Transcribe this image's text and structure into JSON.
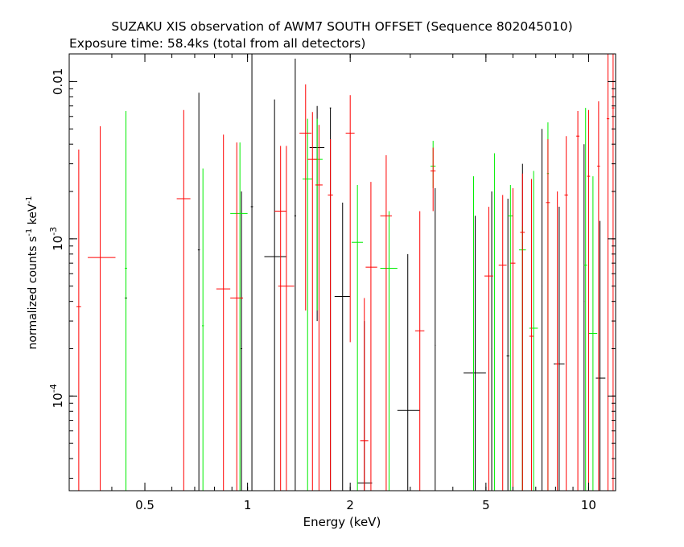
{
  "title": "SUZAKU XIS observation of AWM7 SOUTH OFFSET (Sequence 802045010)",
  "subtitle": "Exposure time: 58.4ks (total from all detectors)",
  "chart_data": {
    "type": "scatter",
    "xlabel": "Energy (keV)",
    "ylabel_main": "normalized counts s",
    "ylabel_sup1": "-1",
    "ylabel_mid": " keV",
    "ylabel_sup2": "-1",
    "xscale": "log",
    "yscale": "log",
    "xlim": [
      0.3,
      12
    ],
    "ylim": [
      2.5e-05,
      0.015
    ],
    "x_ticks": [
      {
        "v": 0.5,
        "label": "0.5"
      },
      {
        "v": 1,
        "label": "1"
      },
      {
        "v": 2,
        "label": "2"
      },
      {
        "v": 5,
        "label": "5"
      },
      {
        "v": 10,
        "label": "10"
      }
    ],
    "y_ticks": [
      {
        "v": 0.0001,
        "base": "10",
        "exp": "-4"
      },
      {
        "v": 0.001,
        "base": "10",
        "exp": "-3"
      },
      {
        "v": 0.01,
        "label": "0.01"
      }
    ],
    "series": [
      {
        "color": "#000000",
        "points": [
          [
            0.44,
            0.00042,
            0.4366,
            0.4434,
            2.5e-05,
            0.0042
          ],
          [
            0.72,
            0.00085,
            0.715,
            0.725,
            2.5e-05,
            0.0085
          ],
          [
            0.96,
            0.0002,
            0.955,
            0.965,
            2.5e-05,
            0.002
          ],
          [
            1.03,
            0.0016,
            1.022,
            1.038,
            2.5e-05,
            0.016
          ],
          [
            1.2,
            0.00077,
            1.12,
            1.3,
            2.5e-05,
            0.0077
          ],
          [
            1.38,
            0.0014,
            1.372,
            1.388,
            2.5e-05,
            0.014
          ],
          [
            1.6,
            0.0038,
            1.52,
            1.68,
            0.0003,
            0.007
          ],
          [
            1.75,
            0.0068,
            1.742,
            1.758,
            2.5e-05,
            0.0068
          ],
          [
            1.9,
            0.00043,
            1.8,
            2.0,
            2.5e-05,
            0.0017
          ],
          [
            2.2,
            2.8e-05,
            2.1,
            2.32,
            2.5e-05,
            0.0003
          ],
          [
            2.95,
            8.1e-05,
            2.75,
            3.2,
            2.5e-05,
            0.0008
          ],
          [
            3.55,
            0.00021,
            3.542,
            3.558,
            2.5e-05,
            0.0021
          ],
          [
            4.65,
            0.00014,
            4.3,
            5.0,
            2.5e-05,
            0.0014
          ],
          [
            5.2,
            0.0002,
            5.192,
            5.208,
            2.5e-05,
            0.002
          ],
          [
            5.8,
            0.00018,
            5.75,
            5.85,
            2.5e-05,
            0.0018
          ],
          [
            6.4,
            0.0003,
            6.39,
            6.41,
            2.5e-05,
            0.003
          ],
          [
            7.3,
            0.0005,
            7.28,
            7.32,
            2.5e-05,
            0.005
          ],
          [
            8.2,
            0.00016,
            7.9,
            8.5,
            2.5e-05,
            0.0016
          ],
          [
            9.7,
            0.0004,
            9.68,
            9.72,
            2.5e-05,
            0.004
          ],
          [
            10.8,
            0.00013,
            10.5,
            11.2,
            2.5e-05,
            0.0013
          ]
        ]
      },
      {
        "color": "#00ee00",
        "points": [
          [
            0.44,
            0.00065,
            0.4366,
            0.4434,
            2.5e-05,
            0.0065
          ],
          [
            0.74,
            0.00028,
            0.735,
            0.745,
            2.5e-05,
            0.0028
          ],
          [
            0.95,
            0.00145,
            0.89,
            1.0,
            2.5e-05,
            0.0041
          ],
          [
            1.5,
            0.0024,
            1.45,
            1.55,
            2.5e-05,
            0.0058
          ],
          [
            1.6,
            0.0032,
            1.56,
            1.66,
            0.00035,
            0.0058
          ],
          [
            2.1,
            0.00095,
            2.02,
            2.18,
            2.5e-05,
            0.0022
          ],
          [
            2.6,
            0.00065,
            2.45,
            2.75,
            2.5e-05,
            0.0015
          ],
          [
            3.5,
            0.0029,
            3.44,
            3.56,
            0.0021,
            0.0042
          ],
          [
            4.6,
            0.00025,
            4.592,
            4.608,
            2.5e-05,
            0.0025
          ],
          [
            5.3,
            0.00035,
            5.292,
            5.308,
            2.5e-05,
            0.0035
          ],
          [
            5.9,
            0.0014,
            5.8,
            6.0,
            2.5e-05,
            0.0022
          ],
          [
            6.4,
            0.00085,
            6.25,
            6.55,
            2.5e-05,
            0.0012
          ],
          [
            6.9,
            0.00027,
            6.7,
            7.1,
            2.5e-05,
            0.0027
          ],
          [
            7.6,
            0.0026,
            7.55,
            7.65,
            2.5e-05,
            0.0055
          ],
          [
            9.8,
            0.00068,
            9.7,
            9.9,
            2.5e-05,
            0.0068
          ],
          [
            10.3,
            0.00025,
            10.0,
            10.6,
            2.5e-05,
            0.0025
          ]
        ]
      },
      {
        "color": "#ff0000",
        "points": [
          [
            0.32,
            0.00037,
            0.315,
            0.325,
            2.5e-05,
            0.0037
          ],
          [
            0.37,
            0.00076,
            0.34,
            0.41,
            2.5e-05,
            0.0052
          ],
          [
            0.65,
            0.0018,
            0.62,
            0.68,
            2.5e-05,
            0.0066
          ],
          [
            0.85,
            0.00048,
            0.81,
            0.89,
            2.5e-05,
            0.0046
          ],
          [
            0.93,
            0.00042,
            0.89,
            0.97,
            2.5e-05,
            0.0041
          ],
          [
            1.25,
            0.0015,
            1.2,
            1.3,
            2.5e-05,
            0.0039
          ],
          [
            1.3,
            0.0005,
            1.23,
            1.37,
            2.5e-05,
            0.0039
          ],
          [
            1.48,
            0.0047,
            1.42,
            1.54,
            0.00035,
            0.0096
          ],
          [
            1.55,
            0.0032,
            1.5,
            1.6,
            2.5e-05,
            0.0064
          ],
          [
            1.62,
            0.0022,
            1.58,
            1.66,
            2.5e-05,
            0.0053
          ],
          [
            1.75,
            0.0019,
            1.72,
            1.78,
            2.5e-05,
            0.0043
          ],
          [
            2.0,
            0.0047,
            1.94,
            2.06,
            0.00022,
            0.0082
          ],
          [
            2.2,
            5.2e-05,
            2.14,
            2.26,
            2.5e-05,
            0.00042
          ],
          [
            2.3,
            0.00066,
            2.22,
            2.4,
            2.5e-05,
            0.0023
          ],
          [
            2.55,
            0.0014,
            2.45,
            2.65,
            2.5e-05,
            0.0034
          ],
          [
            3.2,
            0.00026,
            3.1,
            3.3,
            2.5e-05,
            0.0015
          ],
          [
            3.5,
            0.0027,
            3.44,
            3.56,
            0.0015,
            0.0038
          ],
          [
            5.1,
            0.00058,
            4.95,
            5.25,
            2.5e-05,
            0.0016
          ],
          [
            5.6,
            0.00068,
            5.45,
            5.75,
            2.5e-05,
            0.0019
          ],
          [
            6.0,
            0.0007,
            5.9,
            6.1,
            2.5e-05,
            0.0021
          ],
          [
            6.4,
            0.0011,
            6.3,
            6.5,
            2.5e-05,
            0.0026
          ],
          [
            6.8,
            0.00024,
            6.7,
            6.9,
            2.5e-05,
            0.0024
          ],
          [
            7.6,
            0.0017,
            7.5,
            7.7,
            2.5e-05,
            0.0043
          ],
          [
            8.1,
            0.00016,
            8.0,
            8.2,
            2.5e-05,
            0.002
          ],
          [
            8.6,
            0.0019,
            8.5,
            8.7,
            2.5e-05,
            0.0045
          ],
          [
            9.3,
            0.0045,
            9.2,
            9.4,
            2.5e-05,
            0.0065
          ],
          [
            10.0,
            0.0025,
            9.9,
            10.1,
            2.5e-05,
            0.0066
          ],
          [
            10.7,
            0.0029,
            10.6,
            10.8,
            2.5e-05,
            0.0075
          ],
          [
            11.4,
            0.0058,
            11.3,
            11.5,
            2.5e-05,
            0.015
          ],
          [
            11.8,
            0.0068,
            11.7,
            11.9,
            2.5e-05,
            0.015
          ]
        ]
      }
    ]
  }
}
